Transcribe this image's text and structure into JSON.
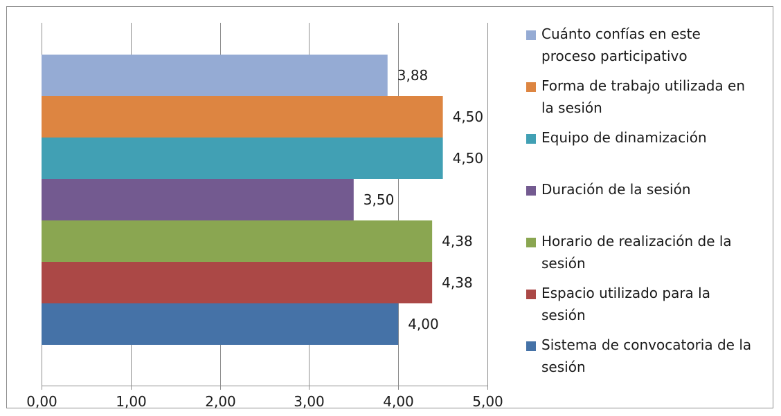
{
  "chart_data": {
    "type": "bar",
    "orientation": "horizontal",
    "title": "",
    "xlabel": "",
    "ylabel": "",
    "xlim": [
      0,
      5
    ],
    "x_ticks": [
      "0,00",
      "1,00",
      "2,00",
      "3,00",
      "4,00",
      "5,00"
    ],
    "grid": "vertical",
    "legend_position": "right",
    "series": [
      {
        "name": "Cuánto  confías en este proceso participativo",
        "value": 3.88,
        "label": "3,88",
        "color": "#95abd4"
      },
      {
        "name": "Forma de trabajo utilizada en la sesión",
        "value": 4.5,
        "label": "4,50",
        "color": "#dd8541"
      },
      {
        "name": "Equipo de dinamización",
        "value": 4.5,
        "label": "4,50",
        "color": "#41a0b4"
      },
      {
        "name": "Duración de la sesión",
        "value": 3.5,
        "label": "3,50",
        "color": "#735a90"
      },
      {
        "name": "Horario de realización de la sesión",
        "value": 4.38,
        "label": "4,38",
        "color": "#8aa651"
      },
      {
        "name": "Espacio utilizado para la sesión",
        "value": 4.38,
        "label": "4,38",
        "color": "#ab4846"
      },
      {
        "name": "Sistema de convocatoria de la sesión",
        "value": 4.0,
        "label": "4,00",
        "color": "#4572a7"
      }
    ]
  }
}
